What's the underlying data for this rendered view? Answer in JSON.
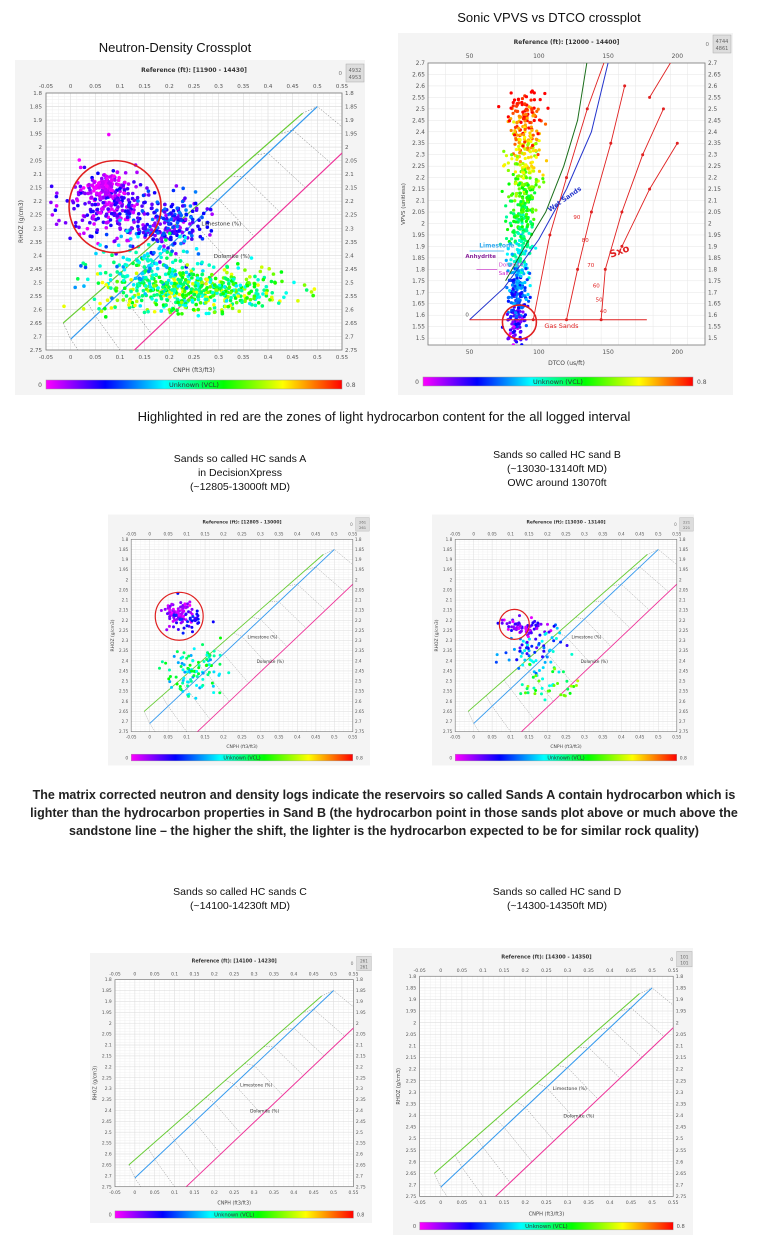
{
  "titles": {
    "sonic": "Sonic VPVS vs DTCO crossplot",
    "nd": "Neutron-Density Crossplot"
  },
  "caption": "Highlighted in red are the zones of light hydrocarbon content for the all logged interval",
  "sand_a": [
    "Sands so called HC sands A",
    "in DecisionXpress",
    "(~12805-13000ft MD)"
  ],
  "sand_b": [
    "Sands so called HC sand B",
    "(~13030-13140ft MD)",
    "OWC around 13070ft"
  ],
  "paragraph": "The matrix corrected neutron and density logs indicate the reservoirs so called Sands A contain hydrocarbon which is lighter than the hydrocarbon properties in Sand B (the hydrocarbon point in those sands plot above or much above the sandstone line – the higher the shift, the lighter is the hydrocarbon expected to be for similar rock quality)",
  "sand_c": [
    "Sands so called HC sands C",
    "(~14100-14230ft MD)"
  ],
  "sand_d": [
    "Sands so called HC sand D",
    "(~14300-14350ft MD)"
  ],
  "plots": {
    "nd_main": {
      "reference": "Reference (ft): [11900 - 14430]",
      "counter": [
        "0",
        "4932",
        "4953"
      ]
    },
    "sonic": {
      "reference": "Reference (ft): [12000 - 14400]",
      "counter": [
        "0",
        "4744",
        "4861"
      ]
    },
    "nd_a": {
      "reference": "Reference (ft): [12805 - 13000]",
      "counter": [
        "0",
        "261",
        "261"
      ]
    },
    "nd_b": {
      "reference": "Reference (ft): [13030 - 13140]",
      "counter": [
        "0",
        "221",
        "221"
      ]
    },
    "nd_c": {
      "reference": "Reference (ft): [14100 - 14230]",
      "counter": [
        "0",
        "261",
        "261"
      ]
    },
    "nd_d": {
      "reference": "Reference (ft): [14300 - 14350]",
      "counter": [
        "0",
        "101",
        "101"
      ]
    }
  },
  "nd_axes": {
    "x_ticks": [
      "-0.05",
      "0",
      "0.05",
      "0.1",
      "0.15",
      "0.2",
      "0.25",
      "0.3",
      "0.35",
      "0.4",
      "0.45",
      "0.5",
      "0.55"
    ],
    "y_ticks": [
      "1.8",
      "1.85",
      "1.9",
      "1.95",
      "2",
      "2.05",
      "2.1",
      "2.15",
      "2.2",
      "2.25",
      "2.3",
      "2.35",
      "2.4",
      "2.45",
      "2.5",
      "2.55",
      "2.6",
      "2.65",
      "2.7",
      "2.75"
    ],
    "xlim": [
      -0.05,
      0.55
    ],
    "ylim": [
      1.8,
      2.75
    ],
    "xlabel": "CNPH (ft3/ft3)",
    "ylabel": "RHOZ (g/cm3)",
    "limestone": "Limestone (%)",
    "dolomite": "Dolomite (%)"
  },
  "sonic_axes": {
    "x_ticks": [
      "50",
      "100",
      "150",
      "200"
    ],
    "y_ticks": [
      "2.7",
      "2.65",
      "2.6",
      "2.55",
      "2.5",
      "2.45",
      "2.4",
      "2.35",
      "2.3",
      "2.25",
      "2.2",
      "2.15",
      "2.1",
      "2.05",
      "2",
      "1.95",
      "1.9",
      "1.85",
      "1.8",
      "1.75",
      "1.7",
      "1.65",
      "1.6",
      "1.55",
      "1.5"
    ],
    "xlim": [
      20,
      220
    ],
    "ylim": [
      1.47,
      2.7
    ],
    "xlabel": "DTCO (us/ft)",
    "ylabel": "VPVS (unitless)",
    "labels": {
      "limestone": "Limestone",
      "anhydrite": "Anhydrite",
      "dolomite": "Dolomite",
      "salt": "Salt",
      "wet_sands": "Wet Sands",
      "sxo": "Sxo",
      "gas_sands": "Gas Sands",
      "zero": "0"
    },
    "sxo_values": [
      "90",
      "80",
      "70",
      "60",
      "50",
      "40"
    ]
  },
  "colorbar": {
    "min": "0",
    "max": "0.8",
    "label": "Unknown (VCL)"
  },
  "colors": {
    "highlight": "#e02020",
    "sandstone": "#66cc33",
    "limestone": "#3399ee",
    "dolomite": "#ee3399"
  }
}
